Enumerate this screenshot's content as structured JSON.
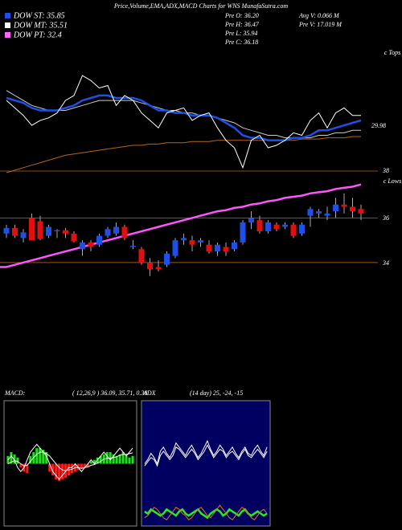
{
  "header": {
    "title": "Price,Volume,EMA,ADX,MACD Charts for WNS MunafaSutra.com",
    "legend": [
      {
        "label": "DOW ST: 35.85",
        "color": "#1e50e6"
      },
      {
        "label": "DOW MT: 35.51",
        "color": "#ffffff"
      },
      {
        "label": "DOW PT: 32.4",
        "color": "#ff66ff"
      }
    ],
    "stats": [
      "Pre O: 36.20",
      "Avg V: 0.066  M",
      "Pre H: 36.47",
      "Pre V: 17.019 M",
      "Pre L: 35.94",
      "Pre C: 36.18"
    ]
  },
  "chart_data": [
    {
      "type": "line",
      "ylim": [
        33,
        38
      ],
      "annotations": [
        "c Tops",
        "29.98",
        "38"
      ],
      "series": [
        {
          "color": "#ffffff",
          "values": [
            35.9,
            35.6,
            35.3,
            34.9,
            35.1,
            35.2,
            35.4,
            35.9,
            36.1,
            36.9,
            36.7,
            36.4,
            36.5,
            35.7,
            36.1,
            35.9,
            35.4,
            35.1,
            34.8,
            35.4,
            35.5,
            35.6,
            35.1,
            35.3,
            35.4,
            34.8,
            34.3,
            34.0,
            33.2,
            34.3,
            34.5,
            34.0,
            34.1,
            34.3,
            34.6,
            34.5,
            35.1,
            35.4,
            34.8,
            35.4,
            35.6,
            35.3,
            35.3
          ]
        },
        {
          "color": "#1e50e6",
          "values": [
            36.0,
            35.9,
            35.8,
            35.6,
            35.5,
            35.5,
            35.5,
            35.6,
            35.7,
            35.9,
            36.0,
            36.1,
            36.1,
            36.0,
            36.0,
            36.0,
            35.9,
            35.7,
            35.5,
            35.5,
            35.4,
            35.4,
            35.3,
            35.3,
            35.3,
            35.2,
            35.0,
            34.8,
            34.5,
            34.4,
            34.4,
            34.3,
            34.3,
            34.3,
            34.4,
            34.4,
            34.5,
            34.7,
            34.7,
            34.8,
            34.9,
            35.0,
            35.1
          ]
        },
        {
          "color": "#cccccc",
          "values": [
            36.3,
            36.1,
            35.9,
            35.7,
            35.6,
            35.5,
            35.5,
            35.5,
            35.6,
            35.7,
            35.8,
            35.9,
            35.9,
            35.9,
            35.9,
            35.9,
            35.8,
            35.7,
            35.6,
            35.5,
            35.5,
            35.4,
            35.4,
            35.3,
            35.3,
            35.2,
            35.1,
            35.0,
            34.8,
            34.7,
            34.6,
            34.5,
            34.5,
            34.4,
            34.4,
            34.4,
            34.4,
            34.5,
            34.5,
            34.6,
            34.6,
            34.7,
            34.7
          ]
        },
        {
          "color": "#b5651d",
          "values": [
            33.0,
            33.1,
            33.2,
            33.3,
            33.4,
            33.5,
            33.6,
            33.7,
            33.75,
            33.8,
            33.85,
            33.9,
            33.95,
            34.0,
            34.05,
            34.1,
            34.1,
            34.15,
            34.15,
            34.2,
            34.2,
            34.2,
            34.25,
            34.25,
            34.25,
            34.3,
            34.3,
            34.3,
            34.3,
            34.3,
            34.3,
            34.3,
            34.3,
            34.3,
            34.3,
            34.35,
            34.35,
            34.35,
            34.4,
            34.4,
            34.4,
            34.45,
            34.45
          ]
        }
      ]
    },
    {
      "type": "candlestick",
      "ylim": [
        33.35,
        37.85
      ],
      "yticks": [
        36,
        34
      ],
      "label": "c Lows",
      "up_color": "#1e50e6",
      "down_color": "#e01010",
      "grid_color": "#b5651d",
      "open": [
        35.3,
        35.55,
        35.1,
        36.0,
        35.85,
        35.2,
        35.4,
        35.45,
        35.3,
        34.6,
        34.9,
        34.8,
        35.2,
        35.3,
        35.6,
        34.7,
        34.6,
        34.0,
        33.8,
        33.9,
        34.3,
        35.0,
        35.0,
        34.9,
        34.8,
        34.5,
        34.7,
        34.6,
        34.9,
        35.8,
        35.9,
        35.4,
        35.7,
        35.6,
        35.7,
        35.3,
        36.1,
        36.2,
        36.1,
        36.3,
        36.6,
        36.5,
        36.4
      ],
      "high": [
        35.7,
        35.7,
        35.5,
        36.2,
        36.1,
        35.7,
        35.5,
        35.55,
        35.4,
        35.0,
        35.0,
        35.3,
        35.6,
        35.8,
        35.7,
        35.0,
        34.7,
        34.2,
        34.1,
        34.5,
        35.1,
        35.3,
        35.2,
        35.1,
        35.0,
        34.9,
        34.9,
        35.0,
        35.9,
        36.3,
        36.1,
        35.9,
        35.8,
        35.8,
        35.8,
        35.8,
        36.5,
        36.4,
        36.5,
        36.9,
        37.1,
        36.9,
        36.6
      ],
      "low": [
        35.1,
        35.1,
        34.9,
        35.0,
        35.0,
        35.1,
        35.1,
        35.1,
        34.9,
        34.3,
        34.5,
        34.7,
        35.1,
        35.2,
        35.0,
        34.6,
        33.9,
        33.4,
        33.6,
        33.8,
        34.2,
        34.8,
        34.5,
        34.7,
        34.4,
        34.3,
        34.3,
        34.5,
        34.8,
        35.5,
        35.3,
        35.3,
        35.4,
        35.5,
        35.1,
        35.2,
        35.6,
        36.0,
        35.9,
        36.0,
        36.2,
        36.0,
        35.9
      ],
      "close": [
        35.55,
        35.2,
        35.35,
        35.0,
        35.05,
        35.6,
        35.45,
        35.3,
        34.95,
        34.9,
        34.7,
        35.2,
        35.5,
        35.6,
        35.1,
        34.75,
        34.0,
        33.7,
        33.7,
        34.4,
        35.0,
        35.1,
        34.8,
        35.0,
        34.5,
        34.8,
        34.5,
        34.9,
        35.8,
        36.0,
        35.4,
        35.8,
        35.5,
        35.7,
        35.2,
        35.7,
        36.4,
        36.3,
        36.2,
        36.6,
        36.5,
        36.3,
        36.2
      ],
      "line": {
        "color": "#ff55ff",
        "values": [
          33.8,
          33.9,
          34.0,
          34.1,
          34.2,
          34.3,
          34.4,
          34.5,
          34.6,
          34.7,
          34.8,
          34.9,
          35.0,
          35.1,
          35.2,
          35.3,
          35.4,
          35.5,
          35.6,
          35.7,
          35.8,
          35.9,
          36.0,
          36.1,
          36.2,
          36.3,
          36.35,
          36.45,
          36.5,
          36.6,
          36.65,
          36.75,
          36.8,
          36.9,
          36.95,
          37.0,
          37.1,
          37.15,
          37.2,
          37.3,
          37.35,
          37.4,
          37.5
        ]
      }
    },
    {
      "type": "macd",
      "title": "MACD:",
      "subtitle": "( 12,26,9 ) 36.09, 35.71, 0.38",
      "ylim": [
        -0.8,
        0.8
      ],
      "pos_color": "#22dd22",
      "neg_color": "#ee2222",
      "histogram": [
        0.1,
        0.15,
        0.12,
        0.08,
        -0.05,
        -0.1,
        -0.12,
        0.1,
        0.15,
        0.2,
        0.2,
        0.18,
        0.15,
        -0.1,
        -0.15,
        -0.2,
        -0.22,
        -0.2,
        -0.18,
        -0.15,
        -0.12,
        -0.1,
        -0.08,
        -0.06,
        -0.05,
        -0.04,
        0.03,
        0.05,
        0.08,
        0.1,
        0.12,
        0.15,
        0.15,
        0.12,
        0.1,
        0.12,
        0.15,
        0.1,
        0.08,
        0.1
      ],
      "series": [
        {
          "color": "#ffffff",
          "values": [
            0.05,
            0.1,
            0.05,
            -0.05,
            -0.1,
            -0.05,
            0.05,
            0.15,
            0.2,
            0.25,
            0.2,
            0.15,
            0.1,
            0.0,
            -0.1,
            -0.15,
            -0.2,
            -0.15,
            -0.1,
            -0.05,
            -0.05,
            0.0,
            -0.05,
            -0.1,
            -0.05,
            0.0,
            0.05,
            0.0,
            0.05,
            0.1,
            0.15,
            0.1,
            0.05,
            0.1,
            0.15,
            0.2,
            0.15,
            0.1,
            0.15,
            0.2
          ]
        },
        {
          "color": "#ffffff",
          "values": [
            0.0,
            0.02,
            0.04,
            0.03,
            0.0,
            -0.03,
            -0.02,
            0.03,
            0.08,
            0.12,
            0.15,
            0.15,
            0.13,
            0.1,
            0.05,
            0.0,
            -0.05,
            -0.08,
            -0.09,
            -0.08,
            -0.07,
            -0.05,
            -0.05,
            -0.06,
            -0.05,
            -0.04,
            -0.02,
            -0.01,
            0.01,
            0.03,
            0.06,
            0.07,
            0.07,
            0.08,
            0.09,
            0.11,
            0.12,
            0.12,
            0.13,
            0.14
          ]
        }
      ]
    },
    {
      "type": "adx",
      "title": "ADX",
      "subtitle": "(14 day) 25, -24, -15",
      "ylim": [
        0,
        60
      ],
      "background": "#000060",
      "series": [
        {
          "color": "#ffffff",
          "values": [
            30,
            32,
            35,
            33,
            30,
            36,
            38,
            35,
            33,
            36,
            40,
            38,
            36,
            34,
            37,
            39,
            36,
            33,
            35,
            38,
            41,
            37,
            34,
            36,
            39,
            37,
            34,
            36,
            38,
            35,
            33,
            36,
            38,
            35,
            34,
            37,
            39,
            36,
            34,
            38
          ]
        },
        {
          "color": "#ffffff",
          "values": [
            29,
            31,
            33,
            32,
            29,
            34,
            36,
            34,
            32,
            34,
            38,
            37,
            35,
            33,
            35,
            37,
            35,
            32,
            34,
            36,
            39,
            36,
            33,
            35,
            37,
            36,
            33,
            35,
            36,
            34,
            32,
            35,
            37,
            34,
            33,
            35,
            37,
            35,
            33,
            36
          ]
        },
        {
          "color": "#22ee22",
          "values": [
            7,
            6,
            8,
            7,
            6,
            5,
            6,
            8,
            7,
            6,
            5,
            7,
            8,
            6,
            5,
            6,
            7,
            8,
            6,
            5,
            4,
            6,
            7,
            8,
            7,
            5,
            6,
            8,
            7,
            6,
            5,
            7,
            8,
            6,
            5,
            6,
            7,
            6,
            5,
            6
          ]
        },
        {
          "color": "#e07020",
          "values": [
            4,
            5,
            7,
            9,
            8,
            6,
            4,
            3,
            5,
            7,
            9,
            8,
            6,
            5,
            3,
            4,
            6,
            8,
            9,
            7,
            5,
            4,
            6,
            8,
            10,
            8,
            6,
            4,
            3,
            5,
            7,
            9,
            8,
            6,
            4,
            3,
            5,
            7,
            8,
            6
          ]
        }
      ]
    }
  ]
}
